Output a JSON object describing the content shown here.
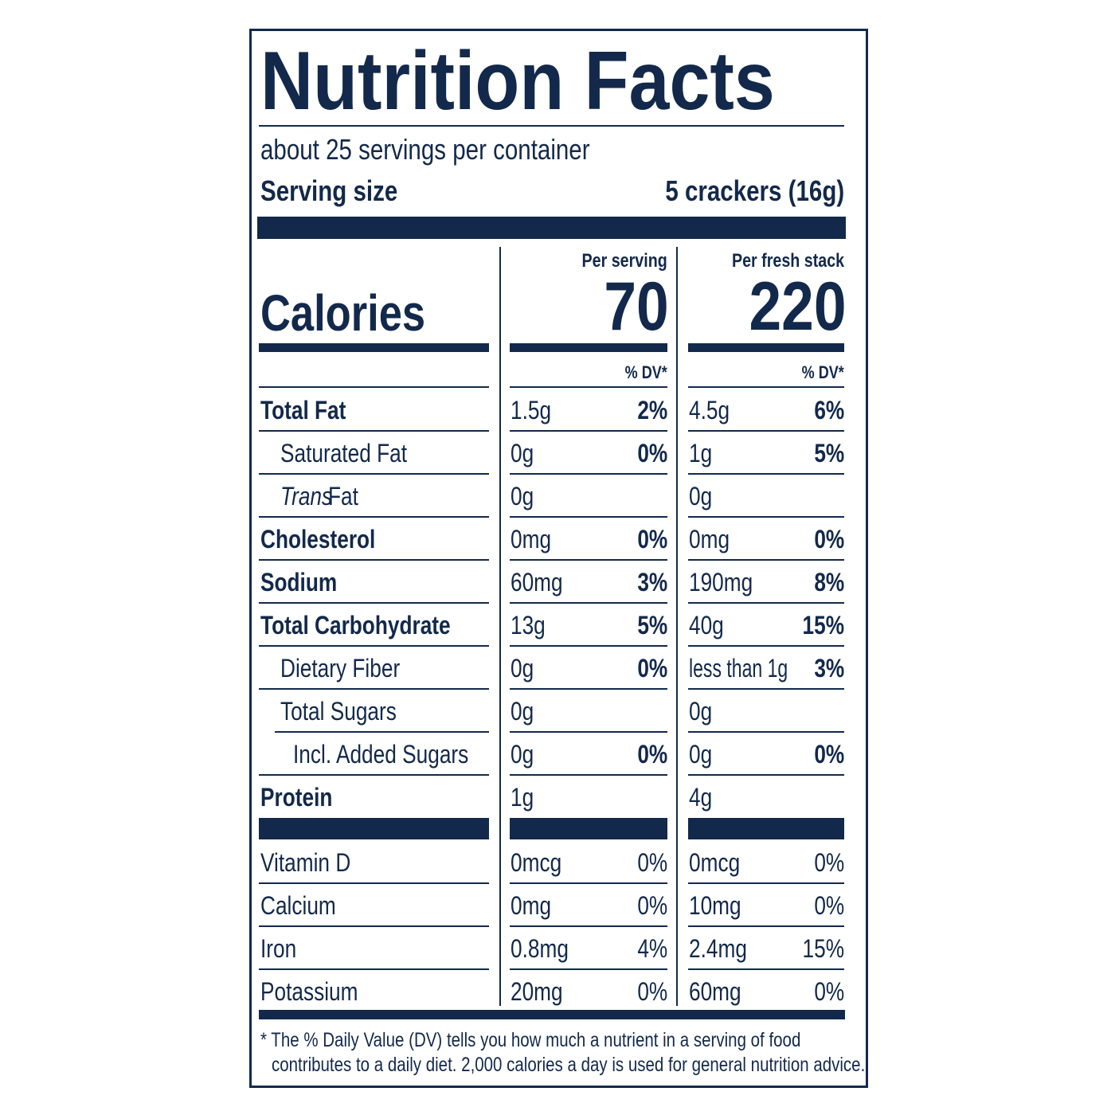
{
  "header": {
    "title": "Nutrition Facts",
    "servings": "about 25 servings per container",
    "serving_size_label": "Serving size",
    "serving_size_value": "5 crackers (16g)"
  },
  "calories": {
    "label": "Calories",
    "columns": [
      {
        "heading": "Per serving",
        "value": "70",
        "dv_heading": "% DV*"
      },
      {
        "heading": "Per fresh stack",
        "value": "220",
        "dv_heading": "% DV*"
      }
    ]
  },
  "nutrients": [
    {
      "name": "Total Fat",
      "bold": true,
      "indent": 0,
      "values": [
        [
          "1.5g",
          "2%"
        ],
        [
          "4.5g",
          "6%"
        ]
      ]
    },
    {
      "name": "Saturated Fat",
      "bold": false,
      "indent": 1,
      "values": [
        [
          "0g",
          "0%"
        ],
        [
          "1g",
          "5%"
        ]
      ]
    },
    {
      "name_italic": "Trans",
      "name": "Fat",
      "bold": false,
      "indent": 1,
      "values": [
        [
          "0g",
          null
        ],
        [
          "0g",
          null
        ]
      ]
    },
    {
      "name": "Cholesterol",
      "bold": true,
      "indent": 0,
      "values": [
        [
          "0mg",
          "0%"
        ],
        [
          "0mg",
          "0%"
        ]
      ]
    },
    {
      "name": "Sodium",
      "bold": true,
      "indent": 0,
      "values": [
        [
          "60mg",
          "3%"
        ],
        [
          "190mg",
          "8%"
        ]
      ]
    },
    {
      "name": "Total Carbohydrate",
      "bold": true,
      "indent": 0,
      "values": [
        [
          "13g",
          "5%"
        ],
        [
          "40g",
          "15%"
        ]
      ]
    },
    {
      "name": "Dietary Fiber",
      "bold": false,
      "indent": 1,
      "values": [
        [
          "0g",
          "0%"
        ],
        [
          "less than 1g",
          "3%"
        ]
      ]
    },
    {
      "name": "Total Sugars",
      "bold": false,
      "indent": 1,
      "values": [
        [
          "0g",
          null
        ],
        [
          "0g",
          null
        ]
      ]
    },
    {
      "name": "Incl. Added Sugars",
      "bold": false,
      "indent": 2,
      "values": [
        [
          "0g",
          "0%"
        ],
        [
          "0g",
          "0%"
        ]
      ]
    },
    {
      "name": "Protein",
      "bold": true,
      "indent": 0,
      "values": [
        [
          "1g",
          null
        ],
        [
          "4g",
          null
        ]
      ]
    }
  ],
  "vitamins": [
    {
      "name": "Vitamin D",
      "values": [
        [
          "0mcg",
          "0%"
        ],
        [
          "0mcg",
          "0%"
        ]
      ]
    },
    {
      "name": "Calcium",
      "values": [
        [
          "0mg",
          "0%"
        ],
        [
          "10mg",
          "0%"
        ]
      ]
    },
    {
      "name": "Iron",
      "values": [
        [
          "0.8mg",
          "4%"
        ],
        [
          "2.4mg",
          "15%"
        ]
      ]
    },
    {
      "name": "Potassium",
      "values": [
        [
          "20mg",
          "0%"
        ],
        [
          "60mg",
          "0%"
        ]
      ]
    }
  ],
  "footnote": [
    "* The % Daily Value (DV) tells you how much a nutrient in a serving of food",
    "contributes to a daily diet. 2,000 calories a day is used for general nutrition advice."
  ]
}
